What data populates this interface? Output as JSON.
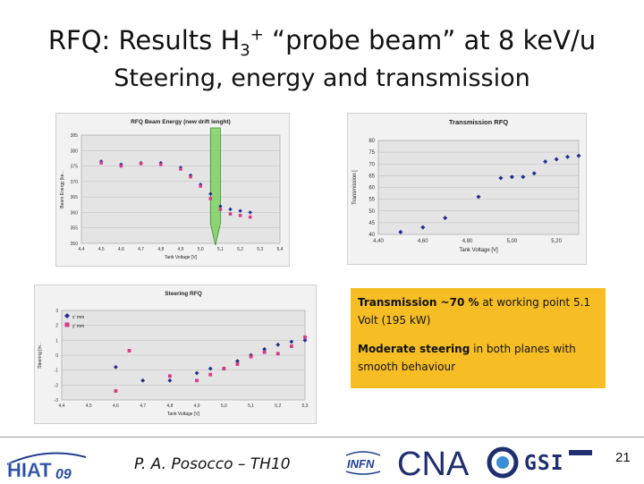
{
  "slide": {
    "title_main": "RFQ: Results H",
    "title_sub_index": "3",
    "title_sup": "+",
    "title_rest": " “probe beam” at 8 keV/u",
    "subtitle": "Steering, energy and transmission",
    "info": {
      "line1_bold": "Transmission ~70 %",
      "line1_rest": " at working point 5.1 Volt (195 kW)",
      "line2_bold": "Moderate steering",
      "line2_rest": " in both planes with smooth behaviour"
    },
    "footer": {
      "author": "P. A. Posocco – TH10",
      "page": "21",
      "logos": [
        "HIAT09",
        "INFN",
        "CNAO",
        "GSI"
      ]
    },
    "highlight_color": "#6fcf4f",
    "info_bg": "#f6be24"
  },
  "chart_data": [
    {
      "type": "scatter",
      "title": "RFQ Beam Energy (new drift lenght)",
      "xlabel": "Tank Voltage [V]",
      "ylabel": "Beam Energy [ke...",
      "x_ticks": [
        "4,4",
        "4,5",
        "4,6",
        "4,7",
        "4,8",
        "4,9",
        "5,0",
        "5,1",
        "5,2",
        "5,3",
        "5,4"
      ],
      "y_ticks": [
        "350",
        "355",
        "360",
        "365",
        "370",
        "375",
        "380",
        "385"
      ],
      "xlim": [
        4.4,
        5.4
      ],
      "ylim": [
        350,
        385
      ],
      "series": [
        {
          "marker": "diamond",
          "color": "#1f2f8f",
          "x": [
            4.5,
            4.6,
            4.7,
            4.8,
            4.9,
            4.95,
            5.0,
            5.05,
            5.1,
            5.15,
            5.2,
            5.25
          ],
          "y": [
            376.5,
            375.5,
            376.0,
            376.0,
            374.5,
            372.0,
            369.0,
            366.0,
            362.0,
            361.0,
            360.5,
            360.0
          ]
        },
        {
          "marker": "square",
          "color": "#d63a8a",
          "x": [
            4.5,
            4.6,
            4.7,
            4.8,
            4.9,
            4.95,
            5.0,
            5.05,
            5.1,
            5.15,
            5.2,
            5.25
          ],
          "y": [
            376.0,
            375.0,
            375.8,
            375.5,
            374.0,
            371.5,
            368.5,
            364.5,
            361.0,
            359.5,
            359.0,
            358.5
          ]
        }
      ],
      "highlight": {
        "x_range": [
          5.05,
          5.1
        ],
        "x_tip": 5.075
      }
    },
    {
      "type": "scatter",
      "title": "Transmission RFQ",
      "xlabel": "Tank Voltage [V]",
      "ylabel": "Transmission [",
      "x_ticks": [
        "4,40",
        "4,60",
        "4,80",
        "5,00",
        "5,20"
      ],
      "y_ticks": [
        "40",
        "45",
        "50",
        "55",
        "60",
        "65",
        "70",
        "75",
        "80"
      ],
      "xlim": [
        4.4,
        5.3
      ],
      "ylim": [
        40,
        80
      ],
      "series": [
        {
          "marker": "diamond",
          "color": "#1f2f8f",
          "x": [
            4.5,
            4.6,
            4.7,
            4.85,
            4.95,
            5.0,
            5.05,
            5.1,
            5.15,
            5.2,
            5.25,
            5.3
          ],
          "y": [
            41,
            43,
            47,
            56,
            64,
            64.5,
            64.5,
            66,
            71,
            72,
            73,
            73.5
          ]
        }
      ]
    },
    {
      "type": "scatter",
      "title": "Steering RFQ",
      "xlabel": "Tank Voltage [V]",
      "ylabel": "Steering [m...",
      "legend": [
        "x' mm",
        "y' mm"
      ],
      "legend_position": "top-left",
      "x_ticks": [
        "4,4",
        "4,5",
        "4,6",
        "4,7",
        "4,8",
        "4,9",
        "5,0",
        "5,1",
        "5,2",
        "5,3"
      ],
      "y_ticks": [
        "3",
        "2",
        "1",
        "0",
        "-1",
        "-2",
        "-3"
      ],
      "xlim": [
        4.4,
        5.3
      ],
      "ylim": [
        -3,
        3
      ],
      "series": [
        {
          "name": "x' mm",
          "marker": "diamond",
          "color": "#1f2f8f",
          "x": [
            4.6,
            4.7,
            4.8,
            4.9,
            4.95,
            5.0,
            5.05,
            5.1,
            5.15,
            5.2,
            5.25,
            5.3
          ],
          "y": [
            -0.8,
            -1.7,
            -1.7,
            -1.2,
            -0.9,
            -0.9,
            -0.4,
            0,
            0.4,
            0.7,
            0.9,
            1.0
          ]
        },
        {
          "name": "y' mm",
          "marker": "square",
          "color": "#d63a8a",
          "x": [
            4.6,
            4.65,
            4.8,
            4.9,
            4.95,
            5.0,
            5.05,
            5.1,
            5.15,
            5.2,
            5.25,
            5.3
          ],
          "y": [
            -2.4,
            0.3,
            -1.4,
            -1.7,
            -1.3,
            -0.9,
            -0.6,
            -0.1,
            0.2,
            0.1,
            0.6,
            1.2
          ]
        }
      ]
    }
  ]
}
